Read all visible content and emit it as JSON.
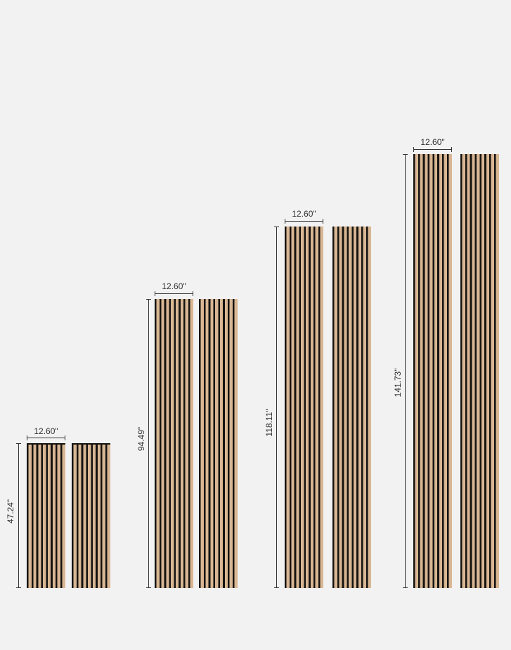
{
  "colors": {
    "background": "#f2f2f2",
    "wood": "#d9b794",
    "slat": "#151311"
  },
  "panels": [
    {
      "width": "12.60\"",
      "height": "47.24\""
    },
    {
      "width": "12.60\"",
      "height": "94.49\""
    },
    {
      "width": "12.60\"",
      "height": "118.11\""
    },
    {
      "width": "12.60\"",
      "height": "141.73\""
    }
  ]
}
